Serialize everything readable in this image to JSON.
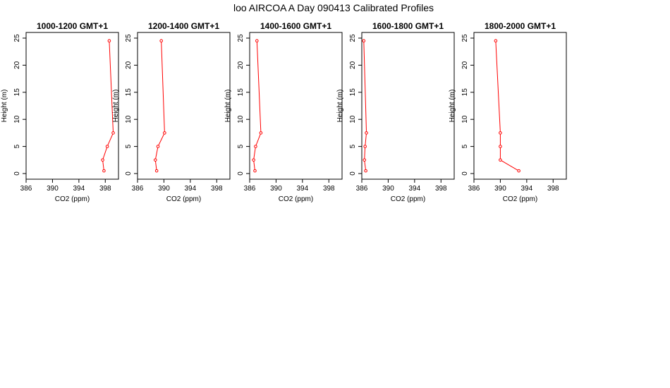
{
  "figure": {
    "title": "loo AIRCOA A  Day 090413  Calibrated Profiles",
    "line_color": "#ff0000",
    "point_color": "#ff0000",
    "axis_color": "#000000"
  },
  "chart_data": [
    {
      "type": "line",
      "title": "1000-1200 GMT+1",
      "xlabel": "CO2 (ppm)",
      "ylabel": "Height (m)",
      "xlim": [
        386,
        400
      ],
      "ylim": [
        0,
        25
      ],
      "xticks": [
        386,
        390,
        394,
        398
      ],
      "yticks": [
        0,
        5,
        10,
        15,
        20,
        25
      ],
      "grid": false,
      "series": [
        {
          "x": [
            397.8,
            397.6,
            398.3,
            399.2,
            398.6
          ],
          "y": [
            0.5,
            2.5,
            5,
            7.5,
            24.5
          ]
        }
      ]
    },
    {
      "type": "line",
      "title": "1200-1400 GMT+1",
      "xlabel": "CO2 (ppm)",
      "ylabel": "Height (m)",
      "xlim": [
        386,
        400
      ],
      "ylim": [
        0,
        25
      ],
      "xticks": [
        386,
        390,
        394,
        398
      ],
      "yticks": [
        0,
        5,
        10,
        15,
        20,
        25
      ],
      "grid": false,
      "series": [
        {
          "x": [
            388.9,
            388.7,
            389.1,
            390.1,
            389.6
          ],
          "y": [
            0.5,
            2.5,
            5,
            7.5,
            24.5
          ]
        }
      ]
    },
    {
      "type": "line",
      "title": "1400-1600 GMT+1",
      "xlabel": "CO2 (ppm)",
      "ylabel": "Height (m)",
      "xlim": [
        386,
        400
      ],
      "ylim": [
        0,
        25
      ],
      "xticks": [
        386,
        390,
        394,
        398
      ],
      "yticks": [
        0,
        5,
        10,
        15,
        20,
        25
      ],
      "grid": false,
      "series": [
        {
          "x": [
            386.8,
            386.6,
            386.9,
            387.7,
            387.1
          ],
          "y": [
            0.5,
            2.5,
            5,
            7.5,
            24.5
          ]
        }
      ]
    },
    {
      "type": "line",
      "title": "1600-1800 GMT+1",
      "xlabel": "CO2 (ppm)",
      "ylabel": "Height (m)",
      "xlim": [
        386,
        400
      ],
      "ylim": [
        0,
        25
      ],
      "xticks": [
        386,
        390,
        394,
        398
      ],
      "yticks": [
        0,
        5,
        10,
        15,
        20,
        25
      ],
      "grid": false,
      "series": [
        {
          "x": [
            386.6,
            386.4,
            386.5,
            386.7,
            386.3
          ],
          "y": [
            0.5,
            2.5,
            5,
            7.5,
            24.5
          ]
        }
      ]
    },
    {
      "type": "line",
      "title": "1800-2000 GMT+1",
      "xlabel": "CO2 (ppm)",
      "ylabel": "Height (m)",
      "xlim": [
        386,
        400
      ],
      "ylim": [
        0,
        25
      ],
      "xticks": [
        386,
        390,
        394,
        398
      ],
      "yticks": [
        0,
        5,
        10,
        15,
        20,
        25
      ],
      "grid": false,
      "series": [
        {
          "x": [
            392.8,
            390.0,
            390.0,
            390.0,
            389.3
          ],
          "y": [
            0.5,
            2.5,
            5,
            7.5,
            24.5
          ]
        }
      ]
    }
  ]
}
